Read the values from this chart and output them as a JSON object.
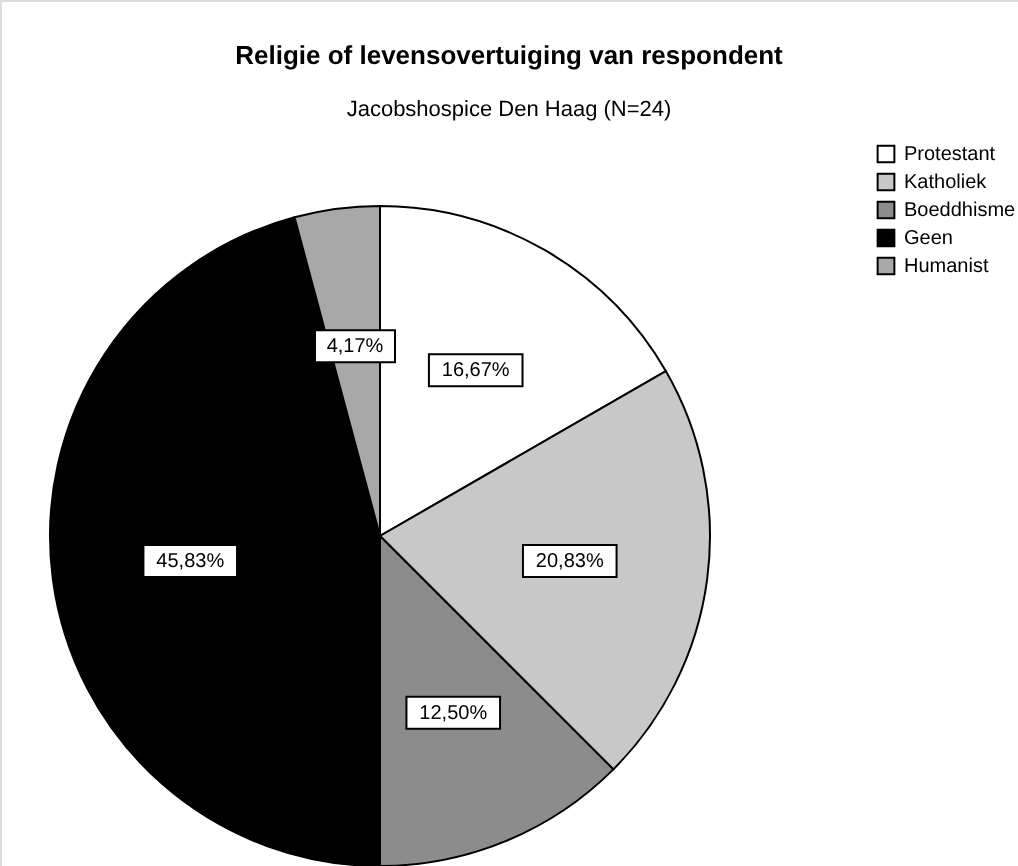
{
  "chart_data": {
    "type": "pie",
    "title": "Religie of levensovertuiging van respondent",
    "subtitle": "Jacobshospice Den Haag (N=24)",
    "categories": [
      "Protestant",
      "Katholiek",
      "Boeddhisme",
      "Geen",
      "Humanist"
    ],
    "values": [
      16.67,
      20.83,
      12.5,
      45.83,
      4.17
    ],
    "colors": [
      "#ffffff",
      "#c8c8c8",
      "#8c8c8c",
      "#000000",
      "#a8a8a8"
    ],
    "value_labels": [
      "16,67%",
      "20,83%",
      "12,50%",
      "45,83%",
      "4,17%"
    ],
    "legend": "top right"
  }
}
